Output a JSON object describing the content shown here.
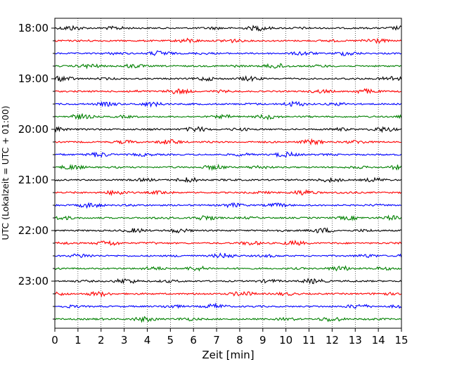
{
  "chart_data": {
    "type": "line",
    "title": "",
    "xlabel": "Zeit  [min]",
    "ylabel": "UTC (Lokalzeit = UTC + 01:00)",
    "xlim": [
      0,
      15
    ],
    "x_ticks": [
      0,
      1,
      2,
      3,
      4,
      5,
      6,
      7,
      8,
      9,
      10,
      11,
      12,
      13,
      14,
      15
    ],
    "x_tick_labels": [
      "0",
      "1",
      "2",
      "3",
      "4",
      "5",
      "6",
      "7",
      "8",
      "9",
      "10",
      "11",
      "12",
      "13",
      "14",
      "15"
    ],
    "y_tick_labels": [
      "18:00",
      "19:00",
      "20:00",
      "21:00",
      "22:00",
      "23:00"
    ],
    "grid": "vertical dotted lines at every minute",
    "trace_start": "18:00",
    "trace_interval_minutes": 15,
    "trace_count": 24,
    "trace_colors": [
      "#000000",
      "#ff0000",
      "#0000ff",
      "#008000"
    ]
  }
}
